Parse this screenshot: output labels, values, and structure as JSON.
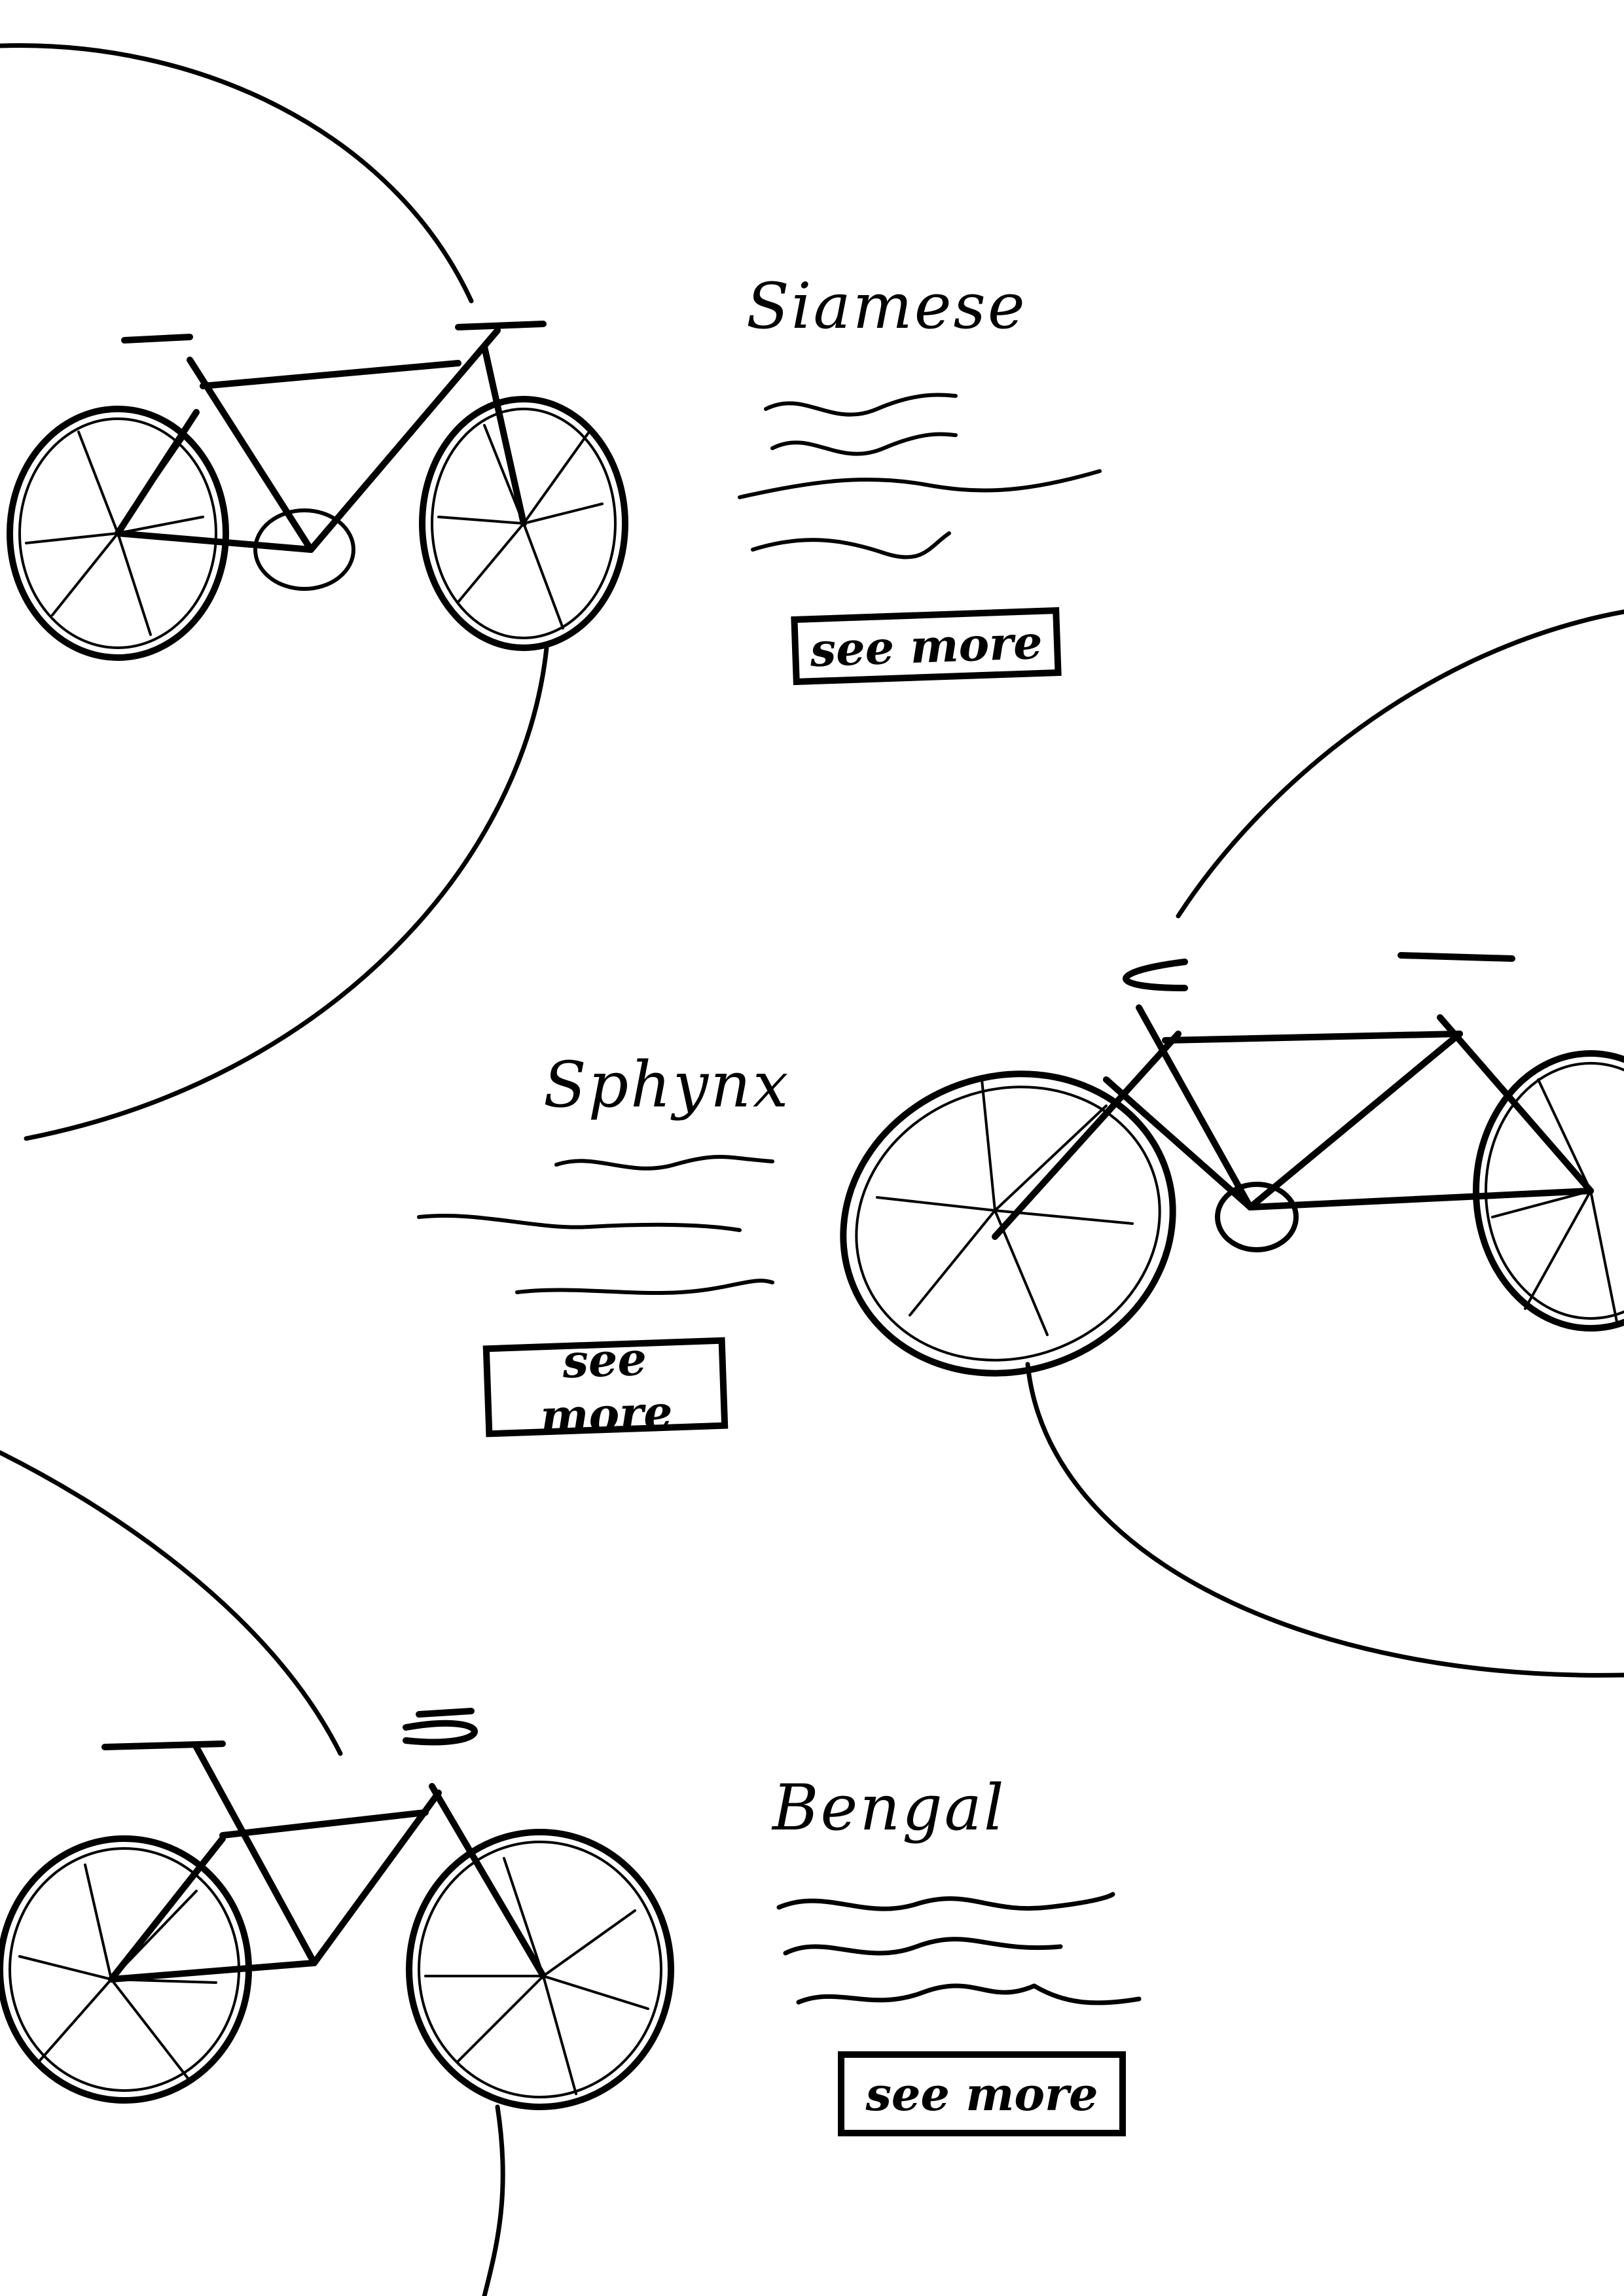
{
  "ink_color": "#000000",
  "products": [
    {
      "name": "Siamese",
      "cta_label": "see more",
      "image_icon": "bicycle-icon"
    },
    {
      "name": "Sphynx",
      "cta_label": "see more",
      "image_icon": "bicycle-icon"
    },
    {
      "name": "Bengal",
      "cta_label": "see more",
      "image_icon": "bicycle-icon"
    }
  ]
}
